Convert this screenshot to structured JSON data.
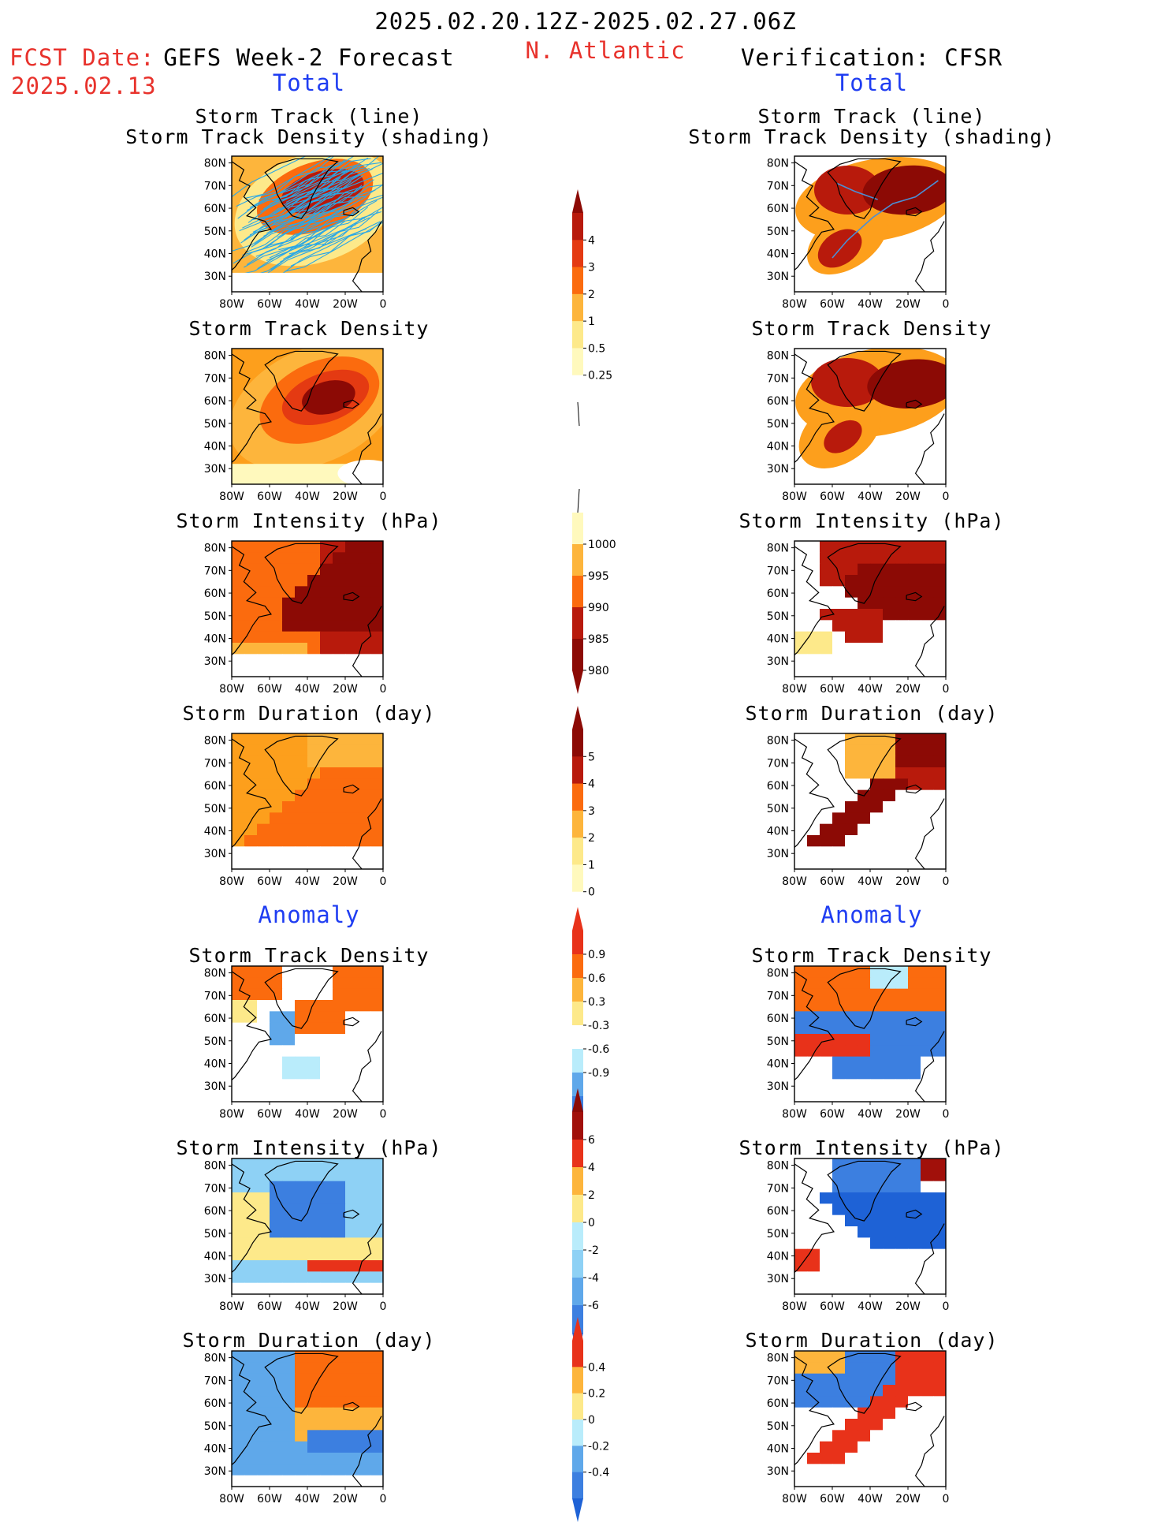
{
  "header": {
    "date_range": "2025.02.20.12Z-2025.02.27.06Z",
    "fcst_label": "FCST Date:",
    "fcst_date": "2025.02.13",
    "forecast_title": "GEFS Week-2 Forecast",
    "region": "N. Atlantic",
    "verification_title": "Verification: CFSR",
    "total_label": "Total",
    "anomaly_label": "Anomaly"
  },
  "panel_titles": {
    "track_line": "Storm Track (line)",
    "track_density_shading": "Storm Track Density (shading)",
    "track_density": "Storm Track Density",
    "intensity": "Storm Intensity (hPa)",
    "duration": "Storm Duration (day)"
  },
  "map_axes": {
    "lat_ticks": [
      "80N",
      "70N",
      "60N",
      "50N",
      "40N",
      "30N"
    ],
    "lon_ticks": [
      "80W",
      "60W",
      "40W",
      "20W",
      "0"
    ]
  },
  "colorbars": {
    "density_total": [
      "4",
      "3",
      "2",
      "1",
      "0.5",
      "0.25"
    ],
    "intensity_total": [
      "1000",
      "995",
      "990",
      "985",
      "980"
    ],
    "duration_total": [
      "5",
      "4",
      "3",
      "2",
      "1",
      "0"
    ],
    "density_anomaly": [
      "0.9",
      "0.6",
      "0.3",
      "-0.3",
      "-0.6",
      "-0.9"
    ],
    "intensity_anomaly": [
      "6",
      "4",
      "2",
      "0",
      "-2",
      "-4",
      "-6"
    ],
    "duration_anomaly": [
      "0.4",
      "0.2",
      "0",
      "-0.2",
      "-0.4"
    ]
  },
  "colors": {
    "warm_scale": [
      "#fff9bd",
      "#fde98a",
      "#fdb53c",
      "#fd9f1c",
      "#fb6b0e",
      "#e43a12",
      "#b81a0c",
      "#8c0a05"
    ],
    "anom_warm": [
      "#fde98a",
      "#fdb53c",
      "#fb6b0e",
      "#e8321a",
      "#a1100a"
    ],
    "anom_cool": [
      "#ffffff",
      "#b9ecfb",
      "#8ed1f5",
      "#5fa8ea",
      "#3c7fe0",
      "#1e62d6"
    ],
    "title_red": "#e8322c",
    "title_blue": "#1f3df2",
    "track_line": "#2aa7e6"
  }
}
